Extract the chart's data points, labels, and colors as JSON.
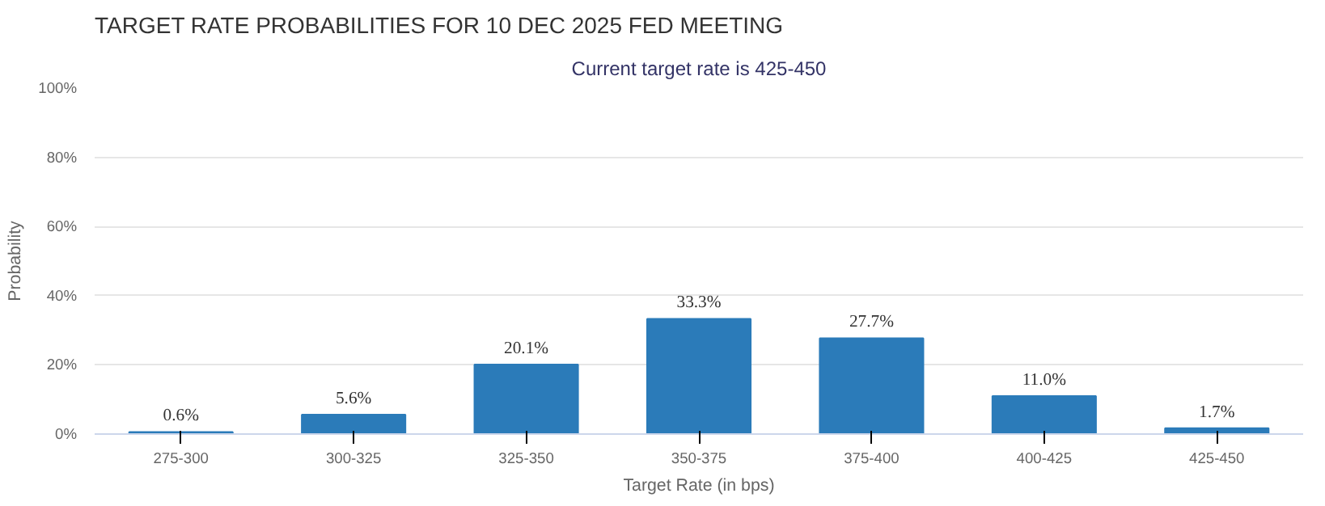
{
  "chart_data": {
    "type": "bar",
    "title": "TARGET RATE PROBABILITIES FOR 10 DEC 2025 FED MEETING",
    "subtitle": "Current target rate is 425-450",
    "xlabel": "Target Rate (in bps)",
    "ylabel": "Probability",
    "categories": [
      "275-300",
      "300-325",
      "325-350",
      "350-375",
      "375-400",
      "400-425",
      "425-450"
    ],
    "values": [
      0.6,
      5.6,
      20.1,
      33.3,
      27.7,
      11.0,
      1.7
    ],
    "value_labels": [
      "0.6%",
      "5.6%",
      "20.1%",
      "33.3%",
      "27.7%",
      "11.0%",
      "1.7%"
    ],
    "color": "#2b7bb9",
    "ylim": [
      0,
      100
    ],
    "yticks": [
      {
        "value": 0,
        "label": "0%"
      },
      {
        "value": 20,
        "label": "20%"
      },
      {
        "value": 40,
        "label": "40%"
      },
      {
        "value": 60,
        "label": "60%"
      },
      {
        "value": 80,
        "label": "80%"
      },
      {
        "value": 100,
        "label": "100%"
      }
    ],
    "grid": "y"
  }
}
